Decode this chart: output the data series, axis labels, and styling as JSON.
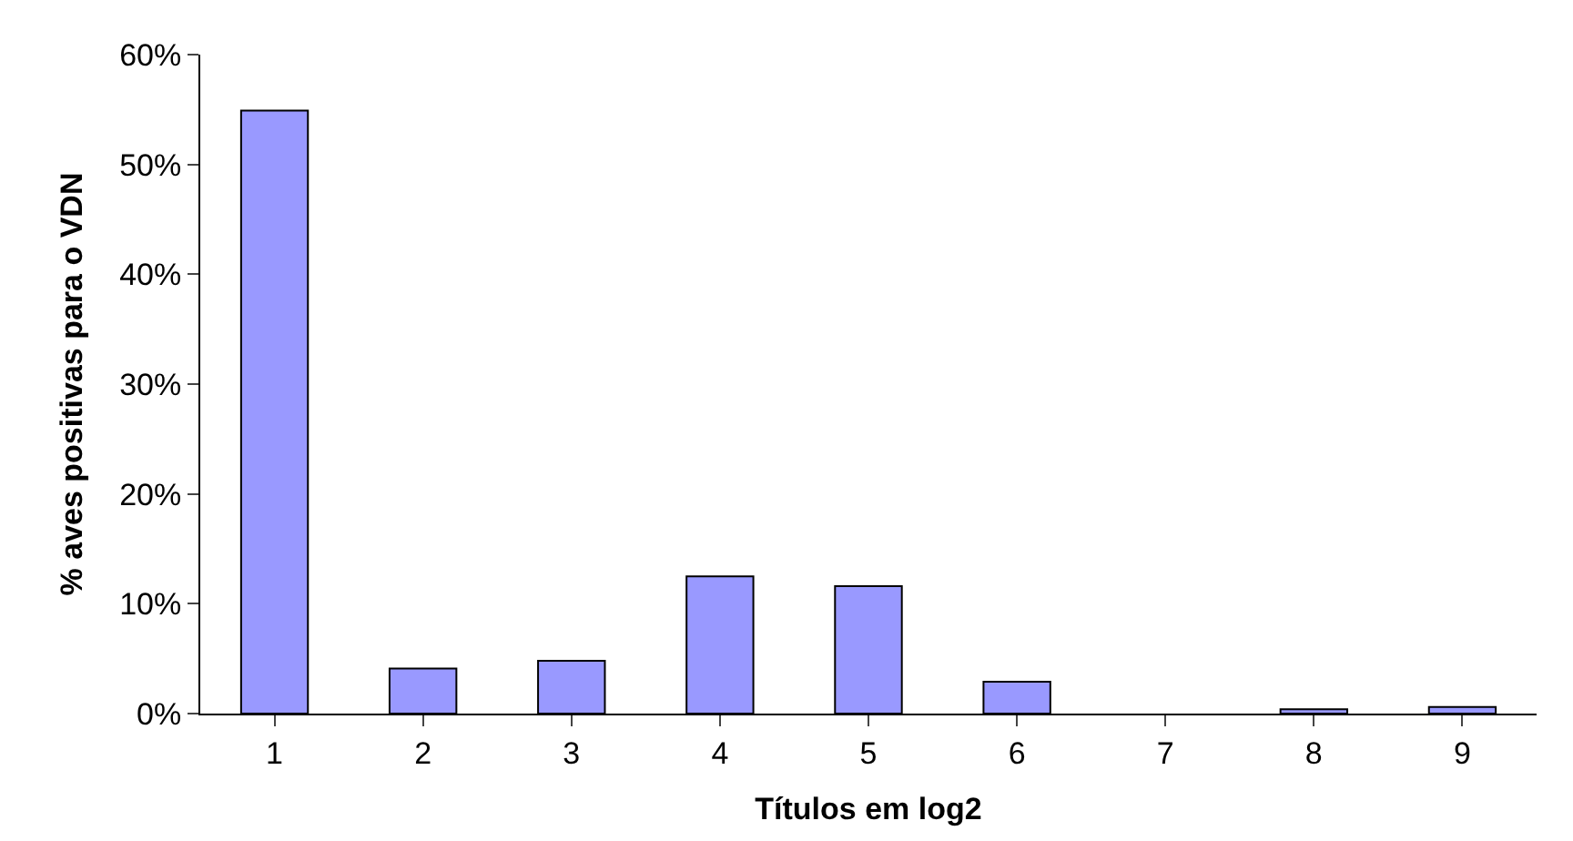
{
  "chart_data": {
    "type": "bar",
    "xlabel": "Títulos em log2",
    "ylabel": "% aves positivas para o VDN",
    "categories": [
      "1",
      "2",
      "3",
      "4",
      "5",
      "6",
      "7",
      "8",
      "9"
    ],
    "values": [
      54.9,
      4.1,
      4.8,
      12.5,
      11.6,
      2.9,
      0,
      0.4,
      0.6
    ],
    "color": "#9999ff",
    "ylim": [
      0,
      60
    ],
    "yticks": [
      {
        "value": 0,
        "label": "0%"
      },
      {
        "value": 10,
        "label": "10%"
      },
      {
        "value": 20,
        "label": "20%"
      },
      {
        "value": 30,
        "label": "30%"
      },
      {
        "value": 40,
        "label": "40%"
      },
      {
        "value": 50,
        "label": "50%"
      },
      {
        "value": 60,
        "label": "60%"
      }
    ]
  }
}
